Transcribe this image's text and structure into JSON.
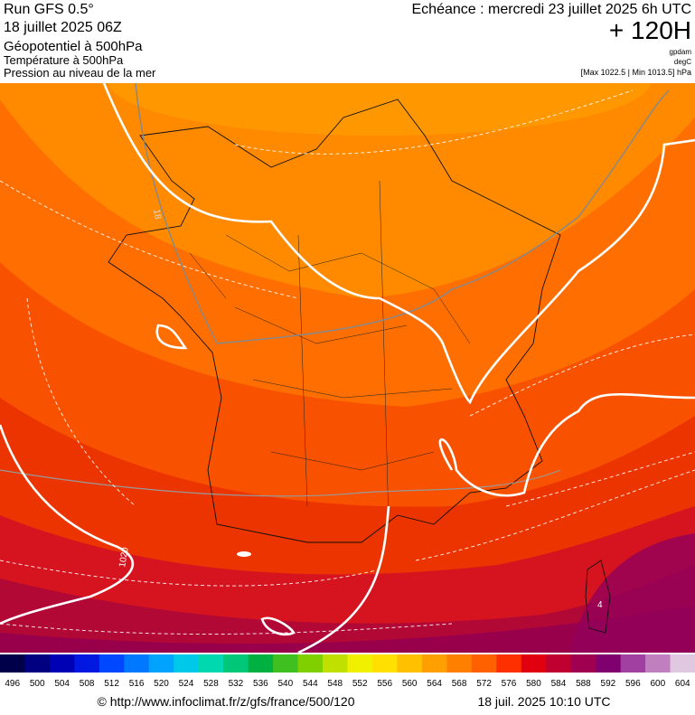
{
  "header": {
    "run": "Run GFS 0.5°",
    "date": "18 juillet 2025 06Z",
    "field1": "Géopotentiel à 500hPa",
    "field2": "Température à 500hPa",
    "field3": "Pression au niveau de la mer",
    "echeance": "Echéance : mercredi 23 juillet 2025 6h UTC",
    "lead": "+ 120H",
    "unit1": "gpdam",
    "unit2": "degC",
    "range": "[Max 1022.5 | Min 1013.5] hPa"
  },
  "map_labels": [
    "18",
    "1020",
    "4"
  ],
  "colorbar": {
    "labels": [
      496,
      500,
      504,
      508,
      512,
      516,
      520,
      524,
      528,
      532,
      536,
      540,
      544,
      548,
      552,
      556,
      560,
      564,
      568,
      572,
      576,
      580,
      584,
      588,
      592,
      596,
      600,
      604
    ],
    "colors": [
      "#00004a",
      "#000080",
      "#0000b4",
      "#0018e0",
      "#0048ff",
      "#0078ff",
      "#00a4ff",
      "#00c8e8",
      "#00d8b0",
      "#00c878",
      "#00b040",
      "#40c020",
      "#80d000",
      "#c0e000",
      "#f0f000",
      "#ffe000",
      "#ffc000",
      "#ffa000",
      "#ff8000",
      "#ff6000",
      "#ff3000",
      "#e00010",
      "#c00030",
      "#a00050",
      "#800070",
      "#a040a0",
      "#c080c0",
      "#e0c8e0"
    ]
  },
  "footer": {
    "source": "© http://www.infoclimat.fr/z/gfs/france/500/120",
    "stamp": "18 juil. 2025 10:10 UTC"
  }
}
